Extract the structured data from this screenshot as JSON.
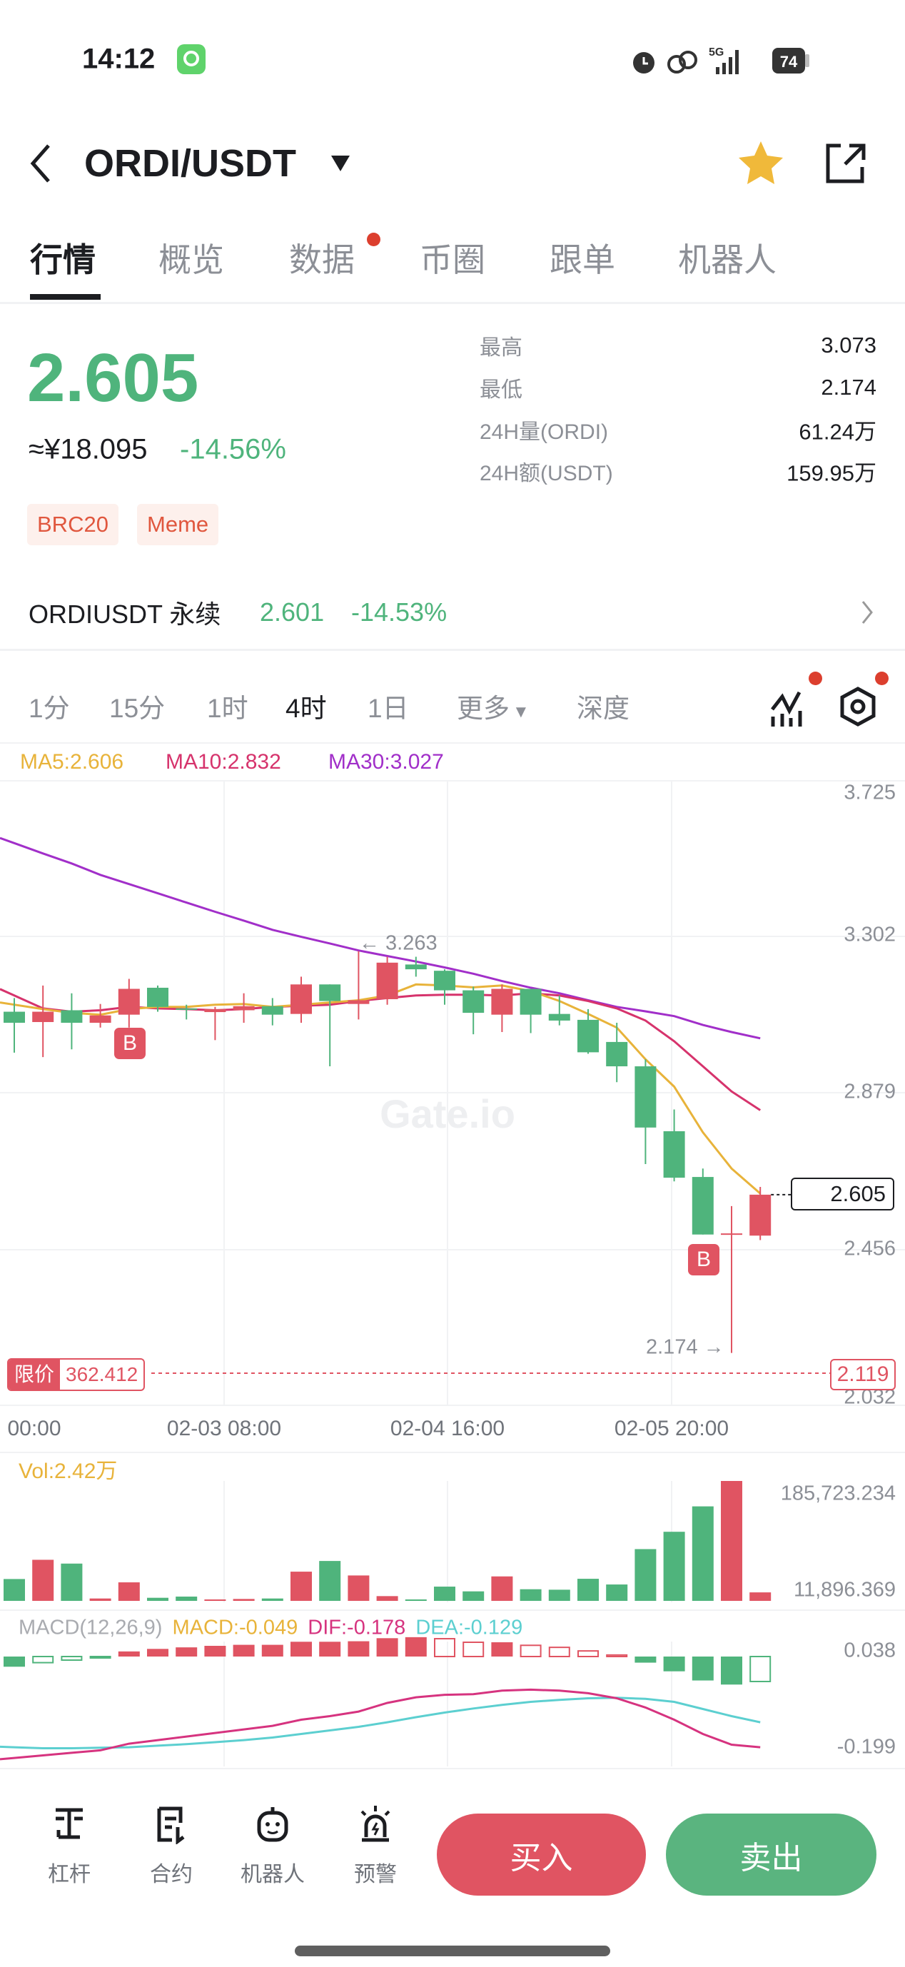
{
  "status_bar": {
    "time": "14:12",
    "network": "5G",
    "battery": "74",
    "icons": [
      "app-status-icon",
      "alarm-icon",
      "link-icon",
      "signal-icon",
      "battery-icon"
    ]
  },
  "header": {
    "pair": "ORDI/USDT",
    "icons": [
      "back-icon",
      "dropdown-icon",
      "star-icon",
      "share-icon"
    ],
    "star_color": "#f0b93a"
  },
  "tabs": [
    {
      "label": "行情",
      "active": true
    },
    {
      "label": "概览"
    },
    {
      "label": "数据",
      "badge": true
    },
    {
      "label": "币圈"
    },
    {
      "label": "跟单"
    },
    {
      "label": "机器人"
    }
  ],
  "ticker": {
    "price": "2.605",
    "cny": "≈¥18.095",
    "change": "-14.56%",
    "tags": [
      "BRC20",
      "Meme"
    ],
    "stats": [
      {
        "label": "最高",
        "value": "3.073"
      },
      {
        "label": "最低",
        "value": "2.174"
      },
      {
        "label": "24H量(ORDI)",
        "value": "61.24万"
      },
      {
        "label": "24H额(USDT)",
        "value": "159.95万"
      }
    ]
  },
  "perpetual": {
    "name": "ORDIUSDT 永续",
    "price": "2.601",
    "change": "-14.53%"
  },
  "timeframes": [
    {
      "label": "1分"
    },
    {
      "label": "15分"
    },
    {
      "label": "1时"
    },
    {
      "label": "4时",
      "active": true
    },
    {
      "label": "1日"
    },
    {
      "label": "更多"
    },
    {
      "label": "深度"
    }
  ],
  "colors": {
    "up": "#e05462",
    "down": "#4fb47c",
    "ma5": "#e8b33a",
    "ma10": "#d6336c",
    "ma30": "#a12fc9",
    "dif": "#d6337f",
    "dea": "#5ccfd0"
  },
  "chart_data": {
    "type": "candlestick",
    "ma_legend": {
      "ma5": "MA5:2.606",
      "ma10": "MA10:2.832",
      "ma30": "MA30:3.027"
    },
    "price_ticks": [
      "3.725",
      "3.302",
      "2.879",
      "2.456",
      "2.032"
    ],
    "ylim": [
      2.032,
      3.725
    ],
    "x_ticks": [
      "00:00",
      "02-03 08:00",
      "02-04 16:00",
      "02-05 20:00"
    ],
    "current_price_label": "2.605",
    "high_marker": "← 3.263",
    "low_marker": "2.174 →",
    "buy_marker": "B",
    "buy_marker_candles": [
      4,
      24
    ],
    "limit_order": {
      "label": "限价",
      "amount": "362.412",
      "price": "2.119"
    },
    "watermark": "Gate.io",
    "candles": [
      [
        3.099,
        3.136,
        2.988,
        3.069
      ],
      [
        3.071,
        3.17,
        2.976,
        3.099
      ],
      [
        3.103,
        3.149,
        2.997,
        3.069
      ],
      [
        3.069,
        3.12,
        3.056,
        3.089
      ],
      [
        3.091,
        3.188,
        3.056,
        3.161
      ],
      [
        3.164,
        3.17,
        3.099,
        3.112
      ],
      [
        3.108,
        3.118,
        3.078,
        3.105
      ],
      [
        3.098,
        3.112,
        3.022,
        3.106
      ],
      [
        3.103,
        3.149,
        3.069,
        3.114
      ],
      [
        3.114,
        3.136,
        3.062,
        3.091
      ],
      [
        3.093,
        3.194,
        3.069,
        3.173
      ],
      [
        3.173,
        3.173,
        2.951,
        3.128
      ],
      [
        3.12,
        3.263,
        3.078,
        3.13
      ],
      [
        3.133,
        3.248,
        3.118,
        3.232
      ],
      [
        3.227,
        3.248,
        3.194,
        3.214
      ],
      [
        3.21,
        3.214,
        3.118,
        3.157
      ],
      [
        3.157,
        3.167,
        3.038,
        3.096
      ],
      [
        3.091,
        3.173,
        3.044,
        3.161
      ],
      [
        3.161,
        3.161,
        3.041,
        3.091
      ],
      [
        3.093,
        3.143,
        3.062,
        3.075
      ],
      [
        3.077,
        3.106,
        2.985,
        2.989
      ],
      [
        3.017,
        3.069,
        2.908,
        2.951
      ],
      [
        2.951,
        2.97,
        2.686,
        2.785
      ],
      [
        2.775,
        2.834,
        2.639,
        2.649
      ],
      [
        2.651,
        2.674,
        2.495,
        2.495
      ],
      [
        2.497,
        2.572,
        2.174,
        2.498
      ],
      [
        2.492,
        2.624,
        2.48,
        2.603
      ]
    ],
    "candle_format": [
      "open",
      "high",
      "low",
      "close"
    ],
    "ma5": [
      3.118,
      3.106,
      3.096,
      3.091,
      3.106,
      3.112,
      3.112,
      3.118,
      3.12,
      3.112,
      3.118,
      3.124,
      3.13,
      3.143,
      3.173,
      3.17,
      3.165,
      3.17,
      3.155,
      3.128,
      3.093,
      3.056,
      2.97,
      2.896,
      2.772,
      2.674,
      2.606
    ],
    "ma10": [
      3.143,
      3.108,
      3.099,
      3.103,
      3.112,
      3.108,
      3.106,
      3.103,
      3.106,
      3.112,
      3.115,
      3.118,
      3.128,
      3.136,
      3.143,
      3.145,
      3.145,
      3.143,
      3.149,
      3.143,
      3.128,
      3.108,
      3.075,
      3.019,
      2.951,
      2.883,
      2.832
    ],
    "ma30": [
      3.556,
      3.528,
      3.501,
      3.47,
      3.445,
      3.42,
      3.395,
      3.37,
      3.346,
      3.321,
      3.302,
      3.284,
      3.265,
      3.25,
      3.235,
      3.219,
      3.202,
      3.182,
      3.164,
      3.149,
      3.13,
      3.112,
      3.1,
      3.087,
      3.063,
      3.044,
      3.027
    ],
    "volume": {
      "legend": "Vol:2.42万",
      "ticks": [
        "185,723.234",
        "11,896.369"
      ],
      "ylim": [
        11896.369,
        185723.234
      ],
      "values": [
        43563,
        71443,
        65935,
        15338,
        38744,
        16371,
        18092,
        12585,
        14650,
        15338,
        54233,
        69722,
        48725,
        18780,
        13617,
        32548,
        25664,
        47349,
        28762,
        28073,
        43907,
        35646,
        86932,
        112059,
        148888,
        185723,
        24200
      ]
    },
    "macd": {
      "legend_params": "MACD(12,26,9)",
      "legend_macd": "MACD:-0.049",
      "legend_dif": "DIF:-0.178",
      "legend_dea": "DEA:-0.129",
      "ticks": [
        "0.038",
        "-0.199"
      ],
      "histogram": [
        -0.02,
        -0.012,
        -0.007,
        -0.001,
        0.01,
        0.015,
        0.018,
        0.021,
        0.023,
        0.023,
        0.029,
        0.029,
        0.03,
        0.036,
        0.038,
        0.035,
        0.028,
        0.028,
        0.022,
        0.018,
        0.011,
        0.003,
        -0.012,
        -0.029,
        -0.047,
        -0.055,
        -0.049
      ],
      "dif": [
        -0.199,
        -0.194,
        -0.189,
        -0.184,
        -0.171,
        -0.164,
        -0.157,
        -0.15,
        -0.143,
        -0.136,
        -0.124,
        -0.117,
        -0.108,
        -0.091,
        -0.08,
        -0.075,
        -0.074,
        -0.067,
        -0.065,
        -0.067,
        -0.072,
        -0.082,
        -0.1,
        -0.124,
        -0.152,
        -0.173,
        -0.178
      ],
      "dea": [
        -0.178,
        -0.18,
        -0.18,
        -0.179,
        -0.178,
        -0.175,
        -0.172,
        -0.168,
        -0.164,
        -0.159,
        -0.152,
        -0.145,
        -0.138,
        -0.129,
        -0.119,
        -0.11,
        -0.102,
        -0.095,
        -0.089,
        -0.085,
        -0.082,
        -0.081,
        -0.083,
        -0.089,
        -0.103,
        -0.117,
        -0.129
      ]
    }
  },
  "bottom_nav": {
    "items": [
      {
        "label": "杠杆",
        "icon": "leverage-icon"
      },
      {
        "label": "合约",
        "icon": "contract-icon"
      },
      {
        "label": "机器人",
        "icon": "robot-icon"
      },
      {
        "label": "预警",
        "icon": "alert-icon"
      }
    ],
    "buy": "买入",
    "sell": "卖出"
  }
}
